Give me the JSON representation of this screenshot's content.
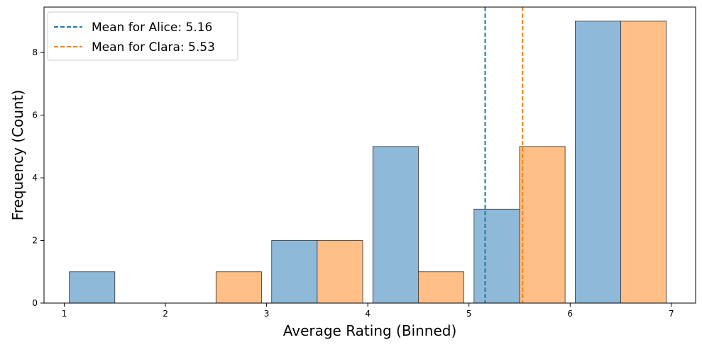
{
  "chart_data": {
    "type": "bar",
    "title": "",
    "xlabel": "Average Rating (Binned)",
    "ylabel": "Frequency (Count)",
    "xlim": [
      0.8,
      7.24
    ],
    "ylim": [
      0,
      9.45
    ],
    "xticks": [
      "1",
      "2",
      "3",
      "4",
      "5",
      "6",
      "7"
    ],
    "yticks": [
      "0",
      "2",
      "4",
      "6",
      "8"
    ],
    "grid": false,
    "legend_position": "top-left",
    "series": [
      {
        "name": "Alice",
        "color": "#8fb9d9",
        "bins": [
          {
            "start": 1.05,
            "end": 1.5,
            "count": 1
          },
          {
            "start": 3.05,
            "end": 3.5,
            "count": 2
          },
          {
            "start": 4.05,
            "end": 4.5,
            "count": 5
          },
          {
            "start": 5.05,
            "end": 5.5,
            "count": 3
          },
          {
            "start": 6.05,
            "end": 6.5,
            "count": 9
          }
        ]
      },
      {
        "name": "Clara",
        "color": "#ffbf86",
        "bins": [
          {
            "start": 2.5,
            "end": 2.95,
            "count": 1
          },
          {
            "start": 3.5,
            "end": 3.95,
            "count": 2
          },
          {
            "start": 4.5,
            "end": 4.95,
            "count": 1
          },
          {
            "start": 5.5,
            "end": 5.95,
            "count": 5
          },
          {
            "start": 6.5,
            "end": 6.95,
            "count": 9
          }
        ]
      }
    ],
    "mean_lines": [
      {
        "label": "Mean for Alice: 5.16",
        "value": 5.16,
        "color": "#1f77b4",
        "style": "dashed"
      },
      {
        "label": "Mean for Clara: 5.53",
        "value": 5.53,
        "color": "#ff7f0e",
        "style": "dashed"
      }
    ]
  }
}
